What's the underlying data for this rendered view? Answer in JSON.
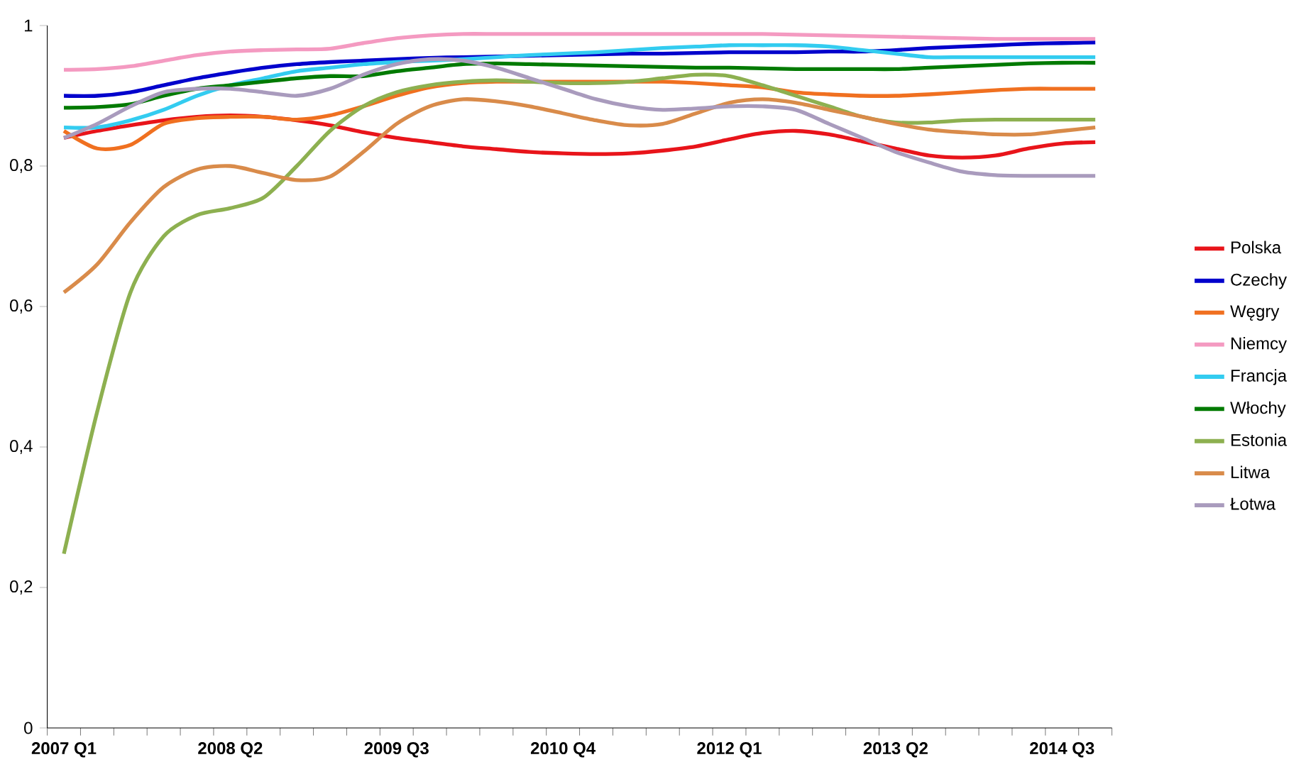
{
  "chart_data": {
    "type": "line",
    "categories": [
      "2007 Q1",
      null,
      null,
      null,
      null,
      "2008 Q2",
      null,
      null,
      null,
      null,
      "2009 Q3",
      null,
      null,
      null,
      null,
      "2010 Q4",
      null,
      null,
      null,
      null,
      "2012 Q1",
      null,
      null,
      null,
      null,
      "2013 Q2",
      null,
      null,
      null,
      null,
      "2014 Q3",
      null
    ],
    "ylim": [
      0,
      1
    ],
    "yticks": [
      0,
      {
        "value": 0.2,
        "label": "0,2"
      },
      {
        "value": 0.4,
        "label": "0,4"
      },
      {
        "value": 0.6,
        "label": "0,6"
      },
      {
        "value": 0.8,
        "label": "0,8"
      },
      1
    ],
    "grid": false,
    "legend": "right",
    "marker": "none",
    "line_style": "solid",
    "series": [
      {
        "name": "Polska",
        "color": "#e8141a",
        "values": [
          0.84,
          0.85,
          0.858,
          0.865,
          0.87,
          0.872,
          0.87,
          0.865,
          0.858,
          0.848,
          0.84,
          0.834,
          0.828,
          0.824,
          0.82,
          0.818,
          0.817,
          0.818,
          0.822,
          0.828,
          0.838,
          0.847,
          0.85,
          0.845,
          0.835,
          0.825,
          0.815,
          0.812,
          0.815,
          0.825,
          0.832,
          0.834
        ]
      },
      {
        "name": "Czechy",
        "color": "#0000cc",
        "values": [
          0.9,
          0.9,
          0.905,
          0.915,
          0.925,
          0.933,
          0.94,
          0.945,
          0.948,
          0.95,
          0.952,
          0.954,
          0.955,
          0.956,
          0.957,
          0.958,
          0.959,
          0.96,
          0.96,
          0.961,
          0.962,
          0.962,
          0.962,
          0.963,
          0.963,
          0.965,
          0.968,
          0.97,
          0.972,
          0.974,
          0.975,
          0.976
        ]
      },
      {
        "name": "Węgry",
        "color": "#f07020",
        "values": [
          0.85,
          0.825,
          0.83,
          0.86,
          0.868,
          0.87,
          0.87,
          0.866,
          0.872,
          0.885,
          0.9,
          0.912,
          0.918,
          0.92,
          0.92,
          0.92,
          0.92,
          0.92,
          0.92,
          0.918,
          0.915,
          0.912,
          0.905,
          0.902,
          0.9,
          0.9,
          0.902,
          0.905,
          0.908,
          0.91,
          0.91,
          0.91
        ]
      },
      {
        "name": "Niemcy",
        "color": "#f49ac1",
        "values": [
          0.937,
          0.938,
          0.942,
          0.95,
          0.958,
          0.963,
          0.965,
          0.966,
          0.967,
          0.975,
          0.982,
          0.986,
          0.988,
          0.988,
          0.988,
          0.988,
          0.988,
          0.988,
          0.988,
          0.988,
          0.988,
          0.988,
          0.987,
          0.986,
          0.985,
          0.984,
          0.983,
          0.982,
          0.981,
          0.981,
          0.981,
          0.981
        ]
      },
      {
        "name": "Francja",
        "color": "#33ccf0",
        "values": [
          0.855,
          0.855,
          0.865,
          0.88,
          0.9,
          0.915,
          0.925,
          0.935,
          0.94,
          0.945,
          0.948,
          0.95,
          0.952,
          0.955,
          0.958,
          0.96,
          0.962,
          0.965,
          0.968,
          0.97,
          0.972,
          0.972,
          0.972,
          0.97,
          0.965,
          0.96,
          0.955,
          0.955,
          0.955,
          0.955,
          0.955,
          0.955
        ]
      },
      {
        "name": "Włochy",
        "color": "#007a00",
        "values": [
          0.883,
          0.884,
          0.888,
          0.9,
          0.91,
          0.915,
          0.92,
          0.925,
          0.928,
          0.928,
          0.935,
          0.94,
          0.945,
          0.946,
          0.945,
          0.944,
          0.943,
          0.942,
          0.941,
          0.94,
          0.94,
          0.939,
          0.938,
          0.938,
          0.938,
          0.938,
          0.94,
          0.942,
          0.944,
          0.946,
          0.947,
          0.947
        ]
      },
      {
        "name": "Estonia",
        "color": "#8db050",
        "values": [
          0.248,
          0.45,
          0.62,
          0.7,
          0.73,
          0.74,
          0.755,
          0.8,
          0.85,
          0.885,
          0.905,
          0.915,
          0.92,
          0.922,
          0.92,
          0.918,
          0.918,
          0.92,
          0.925,
          0.93,
          0.928,
          0.915,
          0.9,
          0.885,
          0.87,
          0.862,
          0.862,
          0.865,
          0.866,
          0.866,
          0.866,
          0.866
        ]
      },
      {
        "name": "Litwa",
        "color": "#d98b4a",
        "values": [
          0.62,
          0.66,
          0.72,
          0.77,
          0.795,
          0.8,
          0.79,
          0.78,
          0.785,
          0.82,
          0.86,
          0.885,
          0.895,
          0.892,
          0.885,
          0.875,
          0.865,
          0.858,
          0.86,
          0.875,
          0.89,
          0.895,
          0.89,
          0.88,
          0.87,
          0.86,
          0.852,
          0.848,
          0.845,
          0.845,
          0.85,
          0.855
        ]
      },
      {
        "name": "Łotwa",
        "color": "#a99bbd",
        "values": [
          0.84,
          0.86,
          0.885,
          0.905,
          0.91,
          0.91,
          0.905,
          0.9,
          0.91,
          0.93,
          0.945,
          0.952,
          0.95,
          0.94,
          0.925,
          0.91,
          0.895,
          0.885,
          0.88,
          0.882,
          0.885,
          0.885,
          0.88,
          0.86,
          0.84,
          0.82,
          0.805,
          0.792,
          0.787,
          0.786,
          0.786,
          0.786
        ]
      }
    ]
  }
}
